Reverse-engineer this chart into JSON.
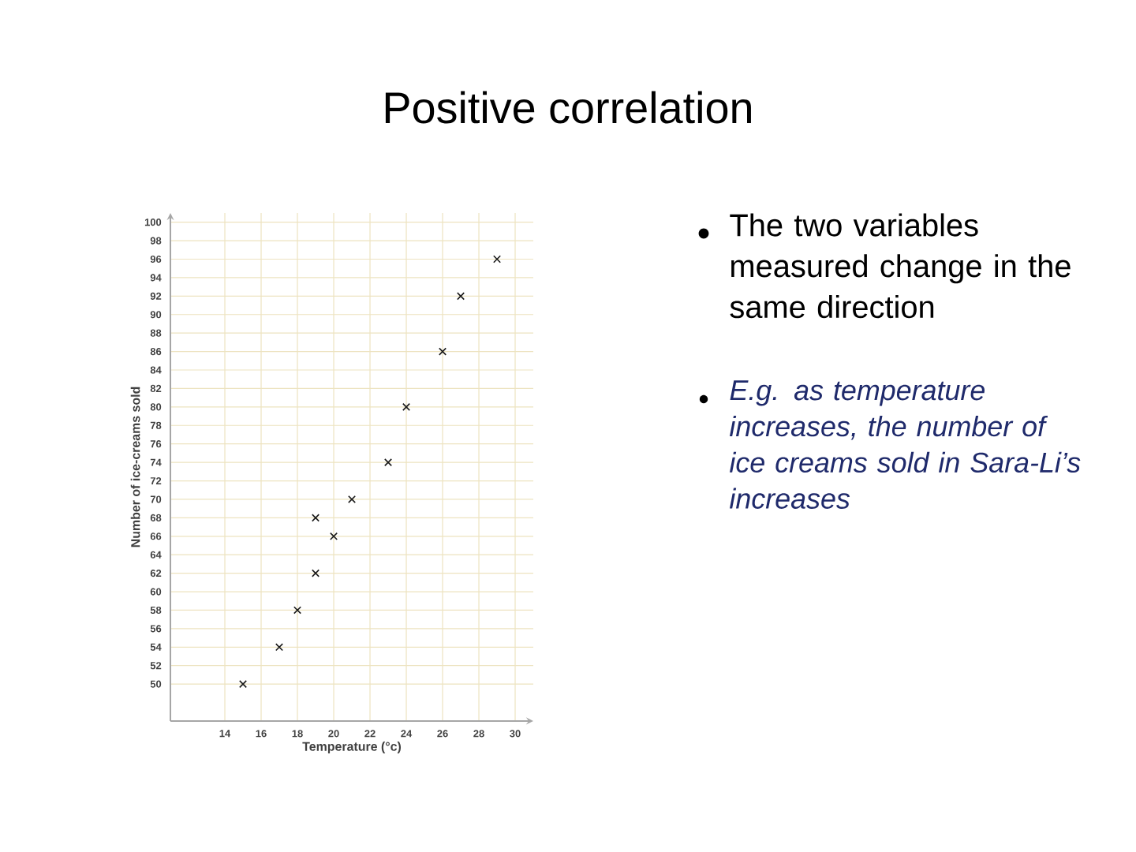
{
  "chart_data": {
    "type": "scatter",
    "title": "Positive correlation",
    "xlabel": "Temperature (°c)",
    "ylabel": "Number of ice-creams sold",
    "x": [
      15,
      17,
      18,
      19,
      19,
      20,
      21,
      23,
      24,
      26,
      27,
      29
    ],
    "values": [
      50,
      54,
      58,
      62,
      68,
      66,
      70,
      74,
      80,
      86,
      92,
      96
    ],
    "color": "#1a1a1a",
    "marker": "cross",
    "grid": true,
    "xlim": [
      11,
      31
    ],
    "ylim": [
      46,
      101
    ],
    "xticks": [
      14,
      16,
      18,
      20,
      22,
      24,
      26,
      28,
      30
    ],
    "yticks": [
      50,
      52,
      54,
      56,
      58,
      60,
      62,
      64,
      66,
      68,
      70,
      72,
      74,
      76,
      78,
      80,
      82,
      84,
      86,
      88,
      90,
      92,
      94,
      96,
      98,
      100
    ],
    "annotations": [
      "The two variables measured change in the same direction",
      "E.g. as temperature increases, the number of ice creams sold in Sara-Li’s increases"
    ]
  }
}
